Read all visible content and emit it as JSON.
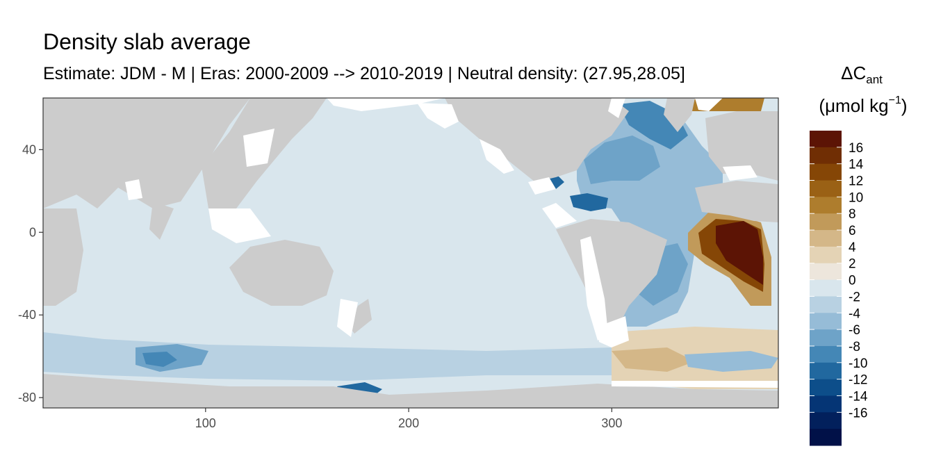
{
  "title": "Density slab average",
  "subtitle": "Estimate: JDM - M | Eras: 2000-2009 --> 2010-2019 | Neutral density: (27.95,28.05]",
  "map": {
    "x_range": [
      20,
      382
    ],
    "y_range": [
      -85,
      65
    ],
    "x_ticks": [
      {
        "value": 100,
        "label": "100"
      },
      {
        "value": 200,
        "label": "200"
      },
      {
        "value": 300,
        "label": "300"
      }
    ],
    "y_ticks": [
      {
        "value": 40,
        "label": "40"
      },
      {
        "value": 0,
        "label": "0"
      },
      {
        "value": -40,
        "label": "-40"
      },
      {
        "value": -80,
        "label": "-80"
      }
    ],
    "colors": {
      "land": "#cccccc",
      "nodata": "#ffffff",
      "panel_border": "#333333"
    }
  },
  "legend": {
    "title_line1_main": "ΔC",
    "title_line1_sub": "ant",
    "title_line2_main": "(μmol kg",
    "title_line2_sup": "−1",
    "title_line2_end": ")",
    "bins": [
      {
        "color": "#5c1405"
      },
      {
        "color": "#702e04"
      },
      {
        "color": "#854606"
      },
      {
        "color": "#9a6115"
      },
      {
        "color": "#ae7d2d"
      },
      {
        "color": "#c19a5a"
      },
      {
        "color": "#d4b788"
      },
      {
        "color": "#e4d3b5"
      },
      {
        "color": "#ede6dc"
      },
      {
        "color": "#d9e6ed"
      },
      {
        "color": "#b8d1e2"
      },
      {
        "color": "#96bcd7"
      },
      {
        "color": "#6ea3c8"
      },
      {
        "color": "#4487b6"
      },
      {
        "color": "#21689f"
      },
      {
        "color": "#0d4e8a"
      },
      {
        "color": "#053575"
      },
      {
        "color": "#02205c"
      },
      {
        "color": "#011148"
      }
    ],
    "labels": [
      "16",
      "14",
      "12",
      "10",
      "8",
      "6",
      "4",
      "2",
      "0",
      "-2",
      "-4",
      "-6",
      "-8",
      "-10",
      "-12",
      "-14",
      "-16"
    ]
  }
}
